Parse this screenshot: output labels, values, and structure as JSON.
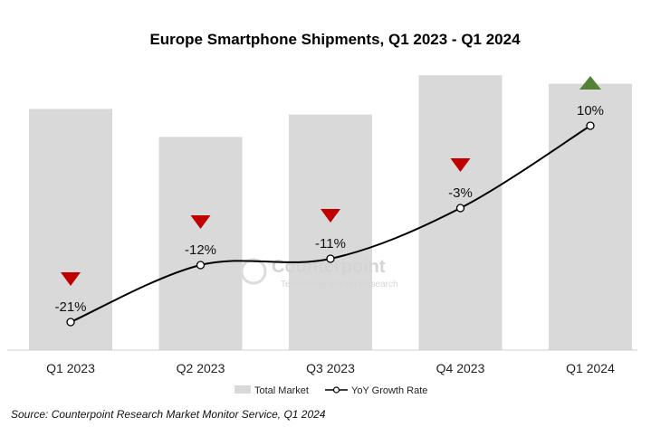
{
  "chart_data": {
    "type": "bar",
    "title": "Europe Smartphone Shipments, Q1 2023 - Q1 2024",
    "categories": [
      "Q1 2023",
      "Q2 2023",
      "Q3 2023",
      "Q4 2023",
      "Q1 2024"
    ],
    "series": [
      {
        "name": "Total Market",
        "type": "bar",
        "color": "#d9d9d9",
        "values": [
          0.86,
          0.76,
          0.84,
          0.98,
          0.95
        ]
      },
      {
        "name": "YoY Growth Rate",
        "type": "line",
        "color": "#000000",
        "values": [
          -21,
          -12,
          -11,
          -3,
          10
        ],
        "labels": [
          "-21%",
          "-12%",
          "-11%",
          "-3%",
          "10%"
        ]
      }
    ],
    "growth_indicators": [
      "down",
      "down",
      "down",
      "down",
      "up"
    ],
    "indicator_colors": {
      "down": "#c00000",
      "up": "#548235"
    },
    "legend": {
      "position": "bottom"
    },
    "grid": false
  },
  "watermark": {
    "brand": "Counterpoint",
    "tagline": "Technology Market Research"
  },
  "source": "Source: Counterpoint Research Market Monitor Service, Q1 2024"
}
